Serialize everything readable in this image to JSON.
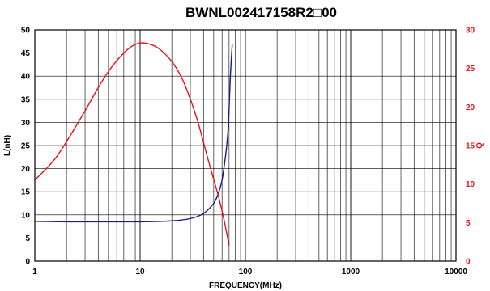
{
  "chart_data": {
    "type": "line",
    "title": "BWNL002417158R2□00",
    "xlabel": "FREQUENCY(MHz)",
    "ylabel": "L(nH)",
    "y2label": "Q",
    "x_scale": "log",
    "xlim": [
      1,
      10000
    ],
    "ylim": [
      0,
      50
    ],
    "y2lim": [
      0,
      30
    ],
    "grid": true,
    "x_ticks": [
      "1",
      "10",
      "100",
      "1000",
      "10000"
    ],
    "y_ticks": [
      "0",
      "5",
      "10",
      "15",
      "20",
      "25",
      "30",
      "35",
      "40",
      "45",
      "50"
    ],
    "y2_ticks": [
      "0",
      "5",
      "10",
      "15",
      "20",
      "25",
      "30"
    ],
    "colors": {
      "L": "#1a1a80",
      "Q": "#e8101a",
      "axis_right": "#e8101a",
      "grid": "#000000"
    },
    "series": [
      {
        "name": "L(nH)",
        "axis": "left",
        "x": [
          1,
          2,
          5,
          10,
          20,
          30,
          40,
          50,
          55,
          60,
          65,
          68,
          70,
          72,
          75
        ],
        "y": [
          8.6,
          8.5,
          8.5,
          8.5,
          8.7,
          9.2,
          10.3,
          12.5,
          14.5,
          17.5,
          23,
          27.5,
          33,
          40,
          47
        ]
      },
      {
        "name": "Q",
        "axis": "right",
        "x": [
          1,
          1.5,
          2,
          3,
          4,
          5,
          6,
          7,
          8,
          9,
          10,
          12,
          15,
          20,
          25,
          30,
          35,
          40,
          45,
          50,
          55,
          60,
          65,
          70
        ],
        "y": [
          10.5,
          13,
          15.5,
          19.5,
          22.5,
          24.6,
          26,
          27,
          27.7,
          28.1,
          28.3,
          28.2,
          27.6,
          25.9,
          23.7,
          21,
          18.3,
          15.4,
          12.8,
          10.6,
          8.6,
          6.5,
          4.3,
          2
        ]
      }
    ]
  }
}
